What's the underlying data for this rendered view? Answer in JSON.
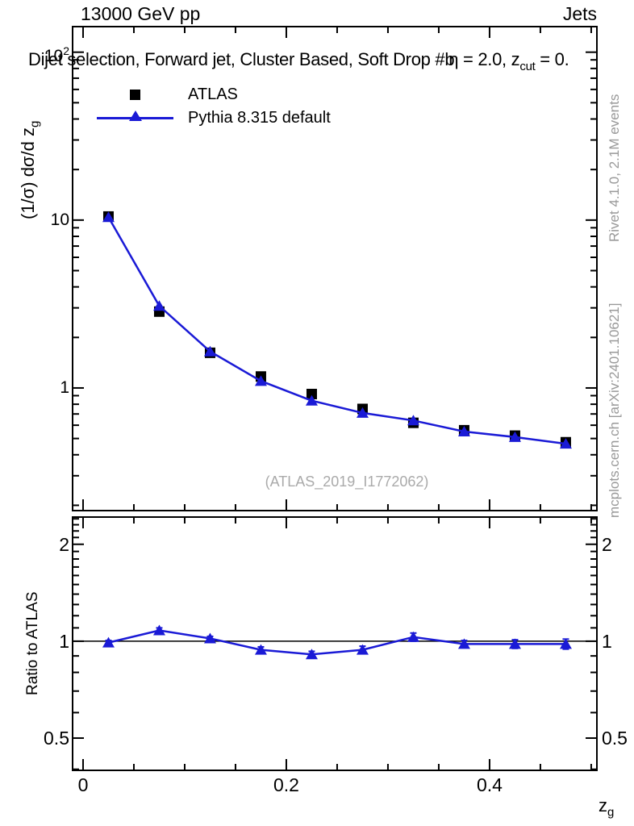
{
  "header": {
    "beam": "13000 GeV pp",
    "process": "Jets"
  },
  "title": {
    "pre": "Dijet selection, Forward jet, Cluster Based, Soft Drop #b",
    "eta": "η",
    "mid": " = 2.0, z",
    "sub": "cut",
    "post": " = 0."
  },
  "watermark": "(ATLAS_2019_I1772062)",
  "side_notes": {
    "rivet": "Rivet 4.1.0,  2.1M events",
    "mcplots": "mcplots.cern.ch [arXiv:2401.10621]"
  },
  "axes": {
    "y_main_label": {
      "pre": "(1/σ) dσ/d z",
      "sub": "g"
    },
    "ratio_label": "Ratio to ATLAS",
    "x_label": {
      "pre": "z",
      "sub": "g"
    },
    "y_main_ticks": [
      {
        "base": "10",
        "sup": "2"
      },
      {
        "base": "10",
        "sup": ""
      },
      {
        "base": "1",
        "sup": ""
      }
    ],
    "ratio_ticks": [
      "2",
      "1",
      "0.5"
    ],
    "x_ticks": [
      "0",
      "0.2",
      "0.4"
    ]
  },
  "legend": [
    {
      "label": "ATLAS",
      "marker": "square",
      "color": "#000000"
    },
    {
      "label": "Pythia 8.315 default",
      "marker": "triangle-line",
      "color": "#1a1ad6"
    }
  ],
  "colors": {
    "mc_blue": "#1a1ad6",
    "axis_black": "#000000",
    "note_gray": "#999999",
    "watermark_gray": "#aaaaaa"
  },
  "chart_data": {
    "type": "line",
    "title": "Dijet selection, Forward jet, Cluster Based, Soft Drop #bη = 2.0, z_cut = 0.",
    "xlabel": "z_g",
    "ylabel": "(1/σ) dσ/d z_g",
    "ratio_ylabel": "Ratio to ATLAS",
    "legend_position": "top-left",
    "grid": false,
    "x": [
      0.025,
      0.075,
      0.125,
      0.175,
      0.225,
      0.275,
      0.325,
      0.375,
      0.425,
      0.475
    ],
    "series": [
      {
        "name": "ATLAS",
        "marker": "square",
        "color": "#000000",
        "values": [
          10.5,
          2.85,
          1.62,
          1.17,
          0.92,
          0.75,
          0.62,
          0.56,
          0.52,
          0.475
        ]
      },
      {
        "name": "Pythia 8.315 default",
        "marker": "triangle",
        "color": "#1a1ad6",
        "values": [
          10.4,
          3.08,
          1.65,
          1.1,
          0.84,
          0.71,
          0.64,
          0.55,
          0.51,
          0.465
        ]
      }
    ],
    "ratio": {
      "name": "Pythia 8.315 default / ATLAS",
      "values": [
        0.99,
        1.08,
        1.02,
        0.94,
        0.91,
        0.94,
        1.03,
        0.98,
        0.98,
        0.98
      ],
      "errors": [
        0.015,
        0.02,
        0.015,
        0.02,
        0.02,
        0.025,
        0.03,
        0.025,
        0.03,
        0.035
      ]
    },
    "x_range": [
      -0.0103,
      0.5056
    ],
    "x_major_ticks": [
      0,
      0.2,
      0.4
    ],
    "x_minor_step": 0.05,
    "y_main_range": [
      0.186,
      142
    ],
    "y_main_scale": "log",
    "y_main_labeled_ticks": [
      1,
      10,
      100
    ],
    "ratio_range": [
      0.397,
      2.43
    ],
    "ratio_scale": "log",
    "ratio_labeled_ticks": [
      0.5,
      1,
      2
    ]
  }
}
